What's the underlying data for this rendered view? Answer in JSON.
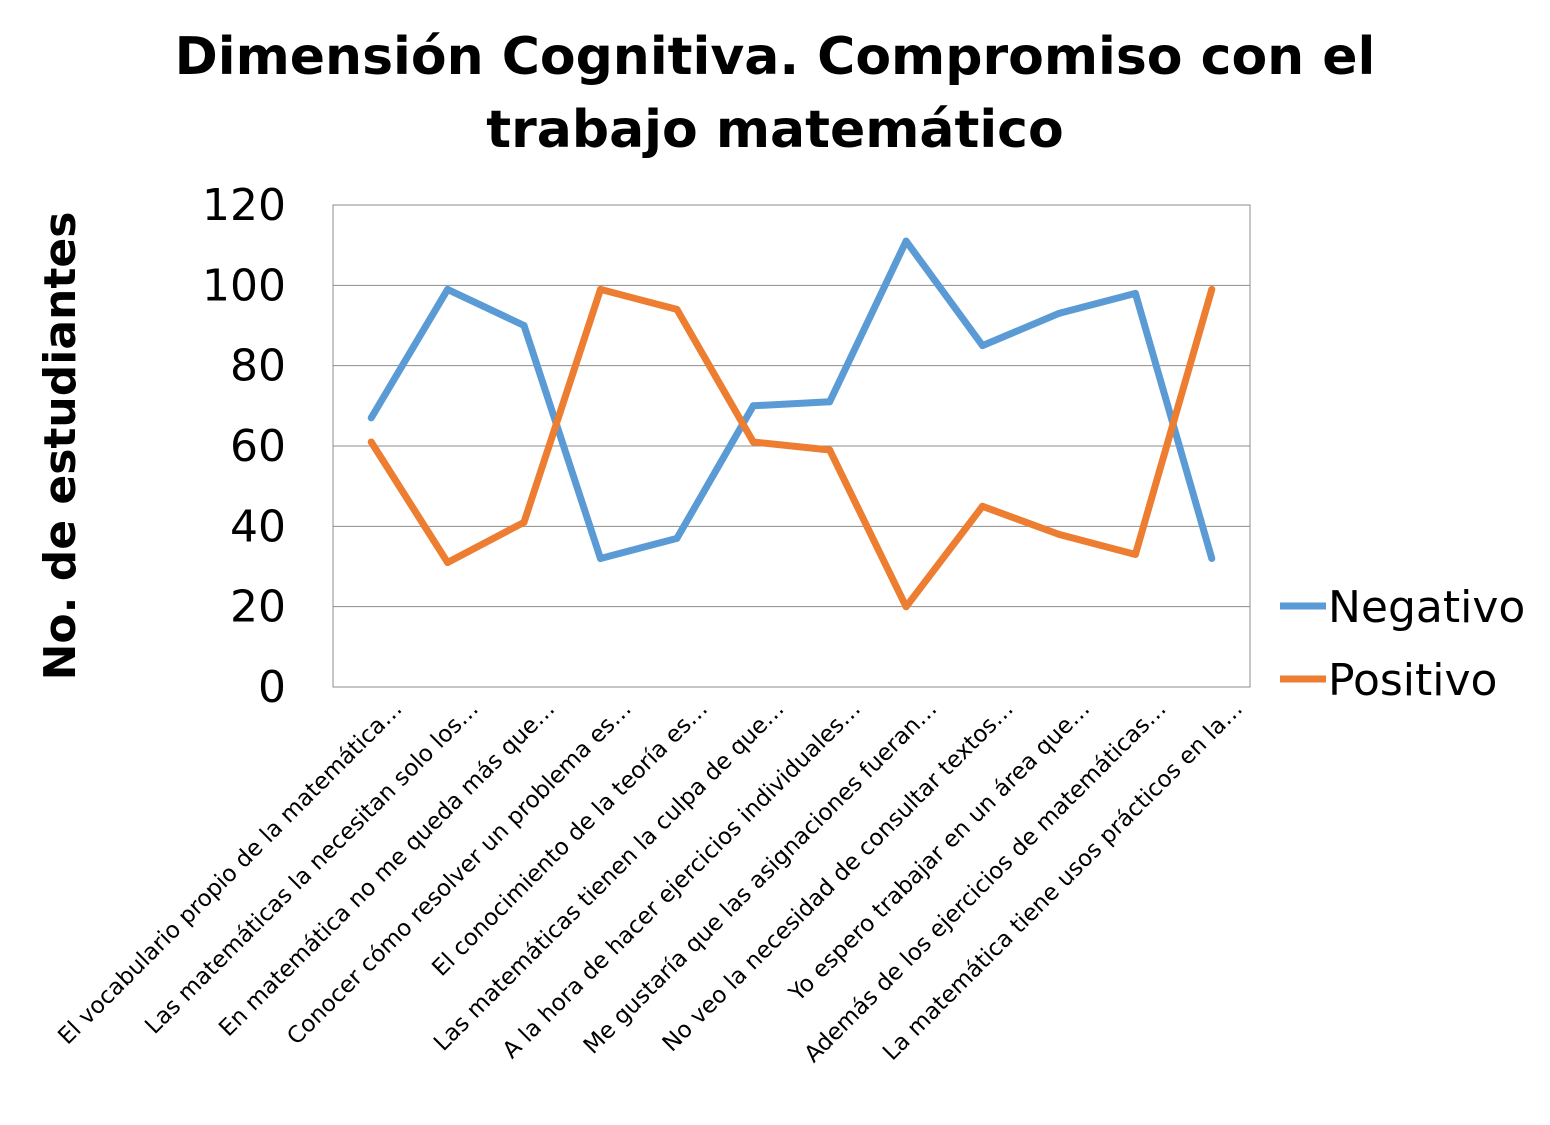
{
  "chart_data": {
    "type": "line",
    "title": "Dimensión Cognitiva. Compromiso con el trabajo matemático",
    "title_lines": [
      "Dimensión Cognitiva. Compromiso con el",
      "trabajo matemático"
    ],
    "xlabel": "",
    "ylabel": "No. de estudiantes",
    "ylim": [
      0,
      120
    ],
    "yticks": [
      0,
      20,
      40,
      60,
      80,
      100,
      120
    ],
    "grid": true,
    "legend_position": "right",
    "categories": [
      "El vocabulario propio de la matemática…",
      "Las matemáticas la necesitan solo los…",
      "En matemática no me queda más que…",
      "Conocer cómo resolver un problema es…",
      "El conocimiento de la teoría es…",
      "Las matemáticas tienen la culpa de que…",
      "A la hora de hacer ejercicios individuales…",
      "Me gustaría que las asignaciones fueran…",
      "No veo la necesidad de consultar textos…",
      "Yo espero trabajar en un área que…",
      "Además de los ejercicios de matemáticas…",
      "La matemática tiene usos prácticos  en la…"
    ],
    "series": [
      {
        "name": "Negativo",
        "color": "#5b9bd5",
        "values": [
          67,
          99,
          90,
          32,
          37,
          70,
          71,
          111,
          85,
          93,
          98,
          32
        ]
      },
      {
        "name": "Positivo",
        "color": "#ed7d31",
        "values": [
          61,
          31,
          41,
          99,
          94,
          61,
          59,
          20,
          45,
          38,
          33,
          99
        ]
      }
    ]
  }
}
